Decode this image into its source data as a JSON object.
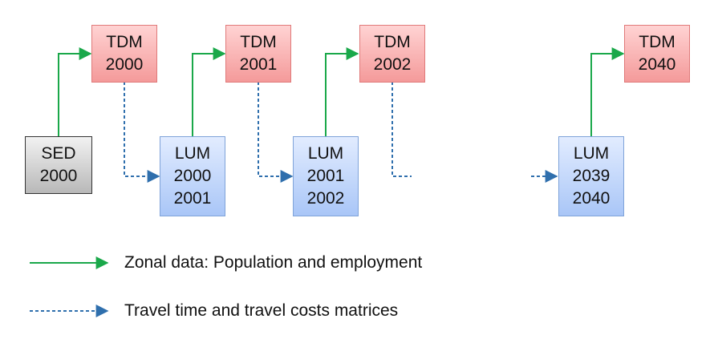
{
  "boxes": {
    "tdm_2000": [
      "TDM",
      "2000"
    ],
    "tdm_2001": [
      "TDM",
      "2001"
    ],
    "tdm_2002": [
      "TDM",
      "2002"
    ],
    "tdm_2040": [
      "TDM",
      "2040"
    ],
    "sed_2000": [
      "SED",
      "2000"
    ],
    "lum_2000_2001": [
      "LUM",
      "2000",
      "2001"
    ],
    "lum_2001_2002": [
      "LUM",
      "2001",
      "2002"
    ],
    "lum_2039_2040": [
      "LUM",
      "2039",
      "2040"
    ]
  },
  "legend": {
    "solid": "Zonal data: Population and employment",
    "dashed": "Travel time and travel costs matrices"
  },
  "colors": {
    "solid_arrow": "#1aa84a",
    "dashed_arrow": "#2f6fad",
    "tdm_fill": "#f8b3b3",
    "lum_fill": "#c4d8fb",
    "sed_fill": "#d3d3d3"
  }
}
